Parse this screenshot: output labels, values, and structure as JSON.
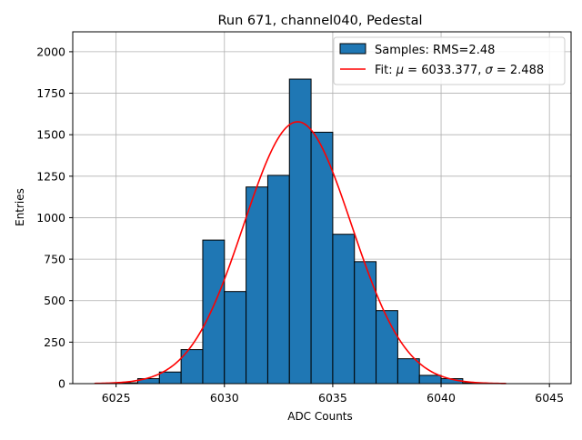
{
  "chart_data": {
    "type": "bar",
    "title": "Run 671, channel040, Pedestal",
    "xlabel": "ADC Counts",
    "ylabel": "Entries",
    "xlim": [
      6023.0,
      6046.0
    ],
    "ylim": [
      0,
      2120
    ],
    "xticks": [
      6025,
      6030,
      6035,
      6040,
      6045
    ],
    "yticks": [
      0,
      250,
      500,
      750,
      1000,
      1250,
      1500,
      1750,
      2000
    ],
    "grid": true,
    "legend_position": "top-right",
    "bins": {
      "edges": [
        6024,
        6025,
        6026,
        6027,
        6028,
        6029,
        6030,
        6031,
        6032,
        6033,
        6034,
        6035,
        6036,
        6037,
        6038,
        6039,
        6040,
        6041,
        6042,
        6043
      ],
      "counts": [
        0,
        5,
        30,
        70,
        205,
        865,
        555,
        1185,
        1255,
        1835,
        1515,
        900,
        735,
        440,
        150,
        50,
        30,
        5,
        0
      ]
    },
    "fit": {
      "mu": 6033.377,
      "sigma": 2.488,
      "peak": 1578,
      "x_range": [
        6024,
        6043
      ]
    },
    "series": [
      {
        "name": "Samples: RMS=2.48",
        "kind": "histogram",
        "color": "#1f77b4"
      },
      {
        "name": "Fit: μ = 6033.377, σ = 2.488",
        "kind": "line",
        "color": "#ff0000"
      }
    ]
  },
  "legend": {
    "samples_label": "Samples: RMS=2.48",
    "fit_prefix": "Fit: ",
    "mu_symbol": "μ",
    "mu_text": " = 6033.377, ",
    "sigma_symbol": "σ",
    "sigma_text": " = 2.488"
  }
}
